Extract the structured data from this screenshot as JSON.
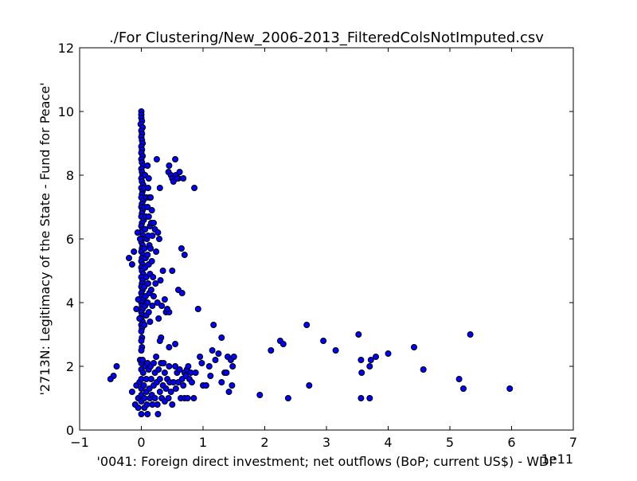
{
  "chart_data": {
    "type": "scatter",
    "title": "./For Clustering/New_2006-2013_FilteredColsNotImputed.csv",
    "xlabel": "'0041: Foreign direct investment; net outflows  (BoP; current US$) - WDI'",
    "ylabel": "'2713N: Legitimacy of the State - Fund for Peace'",
    "x_offset_label": "1e11",
    "x_scale_note": "x values in units of 1e11 (current US$), as printed on the axis",
    "xlim": [
      -1,
      7
    ],
    "ylim": [
      0,
      12
    ],
    "xticks": [
      -1,
      0,
      1,
      2,
      3,
      4,
      5,
      6,
      7
    ],
    "yticks": [
      0,
      2,
      4,
      6,
      8,
      10,
      12
    ],
    "grid": false,
    "legend": "none",
    "marker_color": "#0000ff",
    "marker_edge_color": "#000000",
    "axes_color": "#000000",
    "background_color": "#ffffff",
    "points": [
      [
        0.0,
        10.0
      ],
      [
        0.0,
        9.9
      ],
      [
        0.0,
        9.8
      ],
      [
        0.01,
        9.7
      ],
      [
        -0.01,
        9.6
      ],
      [
        0.02,
        9.5
      ],
      [
        0.0,
        9.4
      ],
      [
        0.01,
        9.3
      ],
      [
        0.0,
        9.2
      ],
      [
        0.01,
        9.1
      ],
      [
        0.02,
        9.0
      ],
      [
        0.0,
        8.9
      ],
      [
        0.01,
        8.8
      ],
      [
        0.0,
        8.7
      ],
      [
        0.02,
        8.6
      ],
      [
        0.0,
        8.5
      ],
      [
        0.01,
        8.4
      ],
      [
        0.03,
        8.3
      ],
      [
        0.0,
        8.2
      ],
      [
        0.01,
        8.1
      ],
      [
        0.02,
        8.0
      ],
      [
        0.0,
        7.9
      ],
      [
        0.01,
        7.8
      ],
      [
        0.03,
        7.7
      ],
      [
        0.0,
        7.6
      ],
      [
        0.02,
        7.5
      ],
      [
        0.01,
        7.4
      ],
      [
        0.0,
        7.3
      ],
      [
        0.03,
        7.2
      ],
      [
        0.01,
        7.1
      ],
      [
        0.0,
        7.0
      ],
      [
        0.02,
        6.9
      ],
      [
        0.01,
        6.8
      ],
      [
        0.0,
        6.7
      ],
      [
        0.04,
        6.6
      ],
      [
        0.01,
        6.5
      ],
      [
        0.0,
        6.4
      ],
      [
        0.02,
        6.3
      ],
      [
        0.0,
        6.2
      ],
      [
        0.03,
        6.1
      ],
      [
        0.01,
        6.0
      ],
      [
        0.0,
        5.9
      ],
      [
        0.02,
        5.8
      ],
      [
        0.01,
        5.7
      ],
      [
        0.0,
        5.6
      ],
      [
        0.03,
        5.5
      ],
      [
        0.01,
        5.4
      ],
      [
        0.0,
        5.3
      ],
      [
        0.02,
        5.2
      ],
      [
        0.0,
        5.1
      ],
      [
        0.01,
        5.0
      ],
      [
        0.03,
        4.9
      ],
      [
        0.0,
        4.8
      ],
      [
        0.02,
        4.7
      ],
      [
        0.01,
        4.6
      ],
      [
        0.0,
        4.5
      ],
      [
        0.02,
        4.4
      ],
      [
        0.0,
        4.3
      ],
      [
        0.01,
        4.2
      ],
      [
        0.03,
        4.1
      ],
      [
        0.0,
        4.0
      ],
      [
        0.01,
        3.9
      ],
      [
        0.02,
        3.8
      ],
      [
        0.0,
        3.7
      ],
      [
        0.01,
        3.6
      ],
      [
        0.0,
        3.5
      ],
      [
        0.02,
        3.4
      ],
      [
        0.0,
        3.3
      ],
      [
        0.01,
        3.2
      ],
      [
        0.0,
        3.1
      ],
      [
        0.01,
        2.9
      ],
      [
        0.0,
        2.8
      ],
      [
        0.01,
        2.6
      ],
      [
        0.0,
        2.5
      ],
      [
        0.06,
        8.0
      ],
      [
        0.05,
        7.6
      ],
      [
        0.08,
        7.3
      ],
      [
        0.05,
        7.0
      ],
      [
        0.07,
        6.7
      ],
      [
        0.06,
        6.3
      ],
      [
        0.09,
        6.0
      ],
      [
        0.05,
        5.7
      ],
      [
        0.07,
        5.4
      ],
      [
        0.06,
        5.1
      ],
      [
        0.08,
        4.8
      ],
      [
        0.05,
        4.5
      ],
      [
        0.07,
        4.2
      ],
      [
        0.06,
        3.9
      ],
      [
        0.08,
        3.6
      ],
      [
        0.05,
        3.3
      ],
      [
        0.1,
        8.3
      ],
      [
        0.12,
        7.9
      ],
      [
        0.11,
        7.6
      ],
      [
        0.13,
        7.3
      ],
      [
        0.1,
        7.0
      ],
      [
        0.12,
        6.7
      ],
      [
        0.14,
        6.4
      ],
      [
        0.11,
        6.1
      ],
      [
        0.13,
        5.8
      ],
      [
        0.1,
        5.5
      ],
      [
        0.12,
        5.2
      ],
      [
        0.14,
        4.9
      ],
      [
        0.11,
        4.6
      ],
      [
        0.13,
        4.3
      ],
      [
        0.1,
        4.0
      ],
      [
        0.12,
        3.7
      ],
      [
        0.14,
        3.4
      ],
      [
        0.15,
        7.3
      ],
      [
        0.17,
        6.9
      ],
      [
        0.16,
        6.5
      ],
      [
        0.18,
        6.1
      ],
      [
        0.15,
        5.7
      ],
      [
        0.17,
        5.3
      ],
      [
        0.19,
        4.8
      ],
      [
        0.16,
        4.4
      ],
      [
        0.18,
        3.9
      ],
      [
        0.2,
        6.5
      ],
      [
        0.2,
        4.2
      ],
      [
        0.25,
        8.5
      ],
      [
        0.22,
        6.3
      ],
      [
        0.24,
        5.6
      ],
      [
        0.23,
        4.6
      ],
      [
        0.27,
        6.2
      ],
      [
        0.26,
        4.0
      ],
      [
        0.28,
        3.5
      ],
      [
        0.3,
        7.6
      ],
      [
        0.29,
        6.0
      ],
      [
        0.31,
        4.7
      ],
      [
        0.33,
        3.9
      ],
      [
        0.35,
        5.0
      ],
      [
        0.32,
        2.9
      ],
      [
        0.3,
        2.8
      ],
      [
        0.4,
        3.7
      ],
      [
        0.38,
        4.1
      ],
      [
        -0.12,
        5.6
      ],
      [
        -0.2,
        5.4
      ],
      [
        -0.15,
        5.2
      ],
      [
        -0.05,
        4.1
      ],
      [
        -0.08,
        3.8
      ],
      [
        -0.03,
        3.5
      ],
      [
        -0.06,
        6.2
      ],
      [
        -0.02,
        6.0
      ],
      [
        0.45,
        8.3
      ],
      [
        0.44,
        8.1
      ],
      [
        0.48,
        8.0
      ],
      [
        0.5,
        7.9
      ],
      [
        0.55,
        8.5
      ],
      [
        0.52,
        7.8
      ],
      [
        0.56,
        8.0
      ],
      [
        0.6,
        7.9
      ],
      [
        0.62,
        8.1
      ],
      [
        0.58,
        7.9
      ],
      [
        0.68,
        7.9
      ],
      [
        0.86,
        7.6
      ],
      [
        0.5,
        5.0
      ],
      [
        0.65,
        5.7
      ],
      [
        0.7,
        5.5
      ],
      [
        0.6,
        4.4
      ],
      [
        0.66,
        4.3
      ],
      [
        0.45,
        3.7
      ],
      [
        0.42,
        3.8
      ],
      [
        0.92,
        3.8
      ],
      [
        0.55,
        2.7
      ],
      [
        0.45,
        2.6
      ],
      [
        -0.45,
        1.7
      ],
      [
        -0.5,
        1.6
      ],
      [
        -0.4,
        2.0
      ],
      [
        -0.15,
        1.2
      ],
      [
        -0.08,
        1.4
      ],
      [
        -0.1,
        0.8
      ],
      [
        -0.05,
        0.7
      ],
      [
        -0.02,
        2.2
      ],
      [
        -0.03,
        1.5
      ],
      [
        -0.05,
        1.0
      ],
      [
        0.0,
        2.1
      ],
      [
        0.0,
        1.9
      ],
      [
        0.0,
        1.6
      ],
      [
        0.0,
        1.3
      ],
      [
        0.0,
        1.1
      ],
      [
        0.0,
        0.9
      ],
      [
        0.0,
        0.5
      ],
      [
        0.02,
        2.2
      ],
      [
        0.03,
        1.8
      ],
      [
        0.04,
        1.4
      ],
      [
        0.05,
        1.0
      ],
      [
        0.05,
        0.7
      ],
      [
        0.07,
        2.0
      ],
      [
        0.08,
        1.6
      ],
      [
        0.08,
        1.2
      ],
      [
        0.09,
        0.8
      ],
      [
        0.1,
        2.1
      ],
      [
        0.1,
        0.5
      ],
      [
        0.12,
        1.9
      ],
      [
        0.13,
        1.3
      ],
      [
        0.14,
        1.0
      ],
      [
        0.15,
        2.0
      ],
      [
        0.16,
        1.6
      ],
      [
        0.17,
        1.1
      ],
      [
        0.18,
        0.8
      ],
      [
        0.2,
        2.1
      ],
      [
        0.2,
        1.4
      ],
      [
        0.22,
        1.8
      ],
      [
        0.22,
        1.0
      ],
      [
        0.24,
        2.3
      ],
      [
        0.25,
        1.5
      ],
      [
        0.26,
        0.8
      ],
      [
        0.27,
        0.5
      ],
      [
        0.28,
        1.9
      ],
      [
        0.3,
        1.2
      ],
      [
        0.3,
        1.6
      ],
      [
        0.32,
        2.1
      ],
      [
        0.33,
        1.0
      ],
      [
        0.35,
        1.4
      ],
      [
        0.36,
        2.1
      ],
      [
        0.38,
        1.8
      ],
      [
        0.38,
        0.9
      ],
      [
        0.4,
        1.3
      ],
      [
        0.42,
        1.6
      ],
      [
        0.44,
        1.0
      ],
      [
        0.45,
        2.0
      ],
      [
        0.46,
        1.5
      ],
      [
        0.48,
        1.2
      ],
      [
        0.5,
        0.8
      ],
      [
        0.52,
        1.5
      ],
      [
        0.55,
        2.0
      ],
      [
        0.56,
        1.3
      ],
      [
        0.58,
        1.8
      ],
      [
        0.6,
        1.5
      ],
      [
        0.62,
        1.9
      ],
      [
        0.64,
        1.0
      ],
      [
        0.66,
        1.6
      ],
      [
        0.68,
        1.4
      ],
      [
        0.7,
        1.0
      ],
      [
        0.7,
        1.8
      ],
      [
        0.72,
        1.7
      ],
      [
        0.74,
        1.9
      ],
      [
        0.75,
        1.0
      ],
      [
        0.76,
        2.0
      ],
      [
        0.78,
        1.6
      ],
      [
        0.8,
        1.8
      ],
      [
        0.82,
        1.5
      ],
      [
        0.85,
        1.0
      ],
      [
        0.88,
        1.8
      ],
      [
        0.95,
        2.3
      ],
      [
        0.98,
        2.1
      ],
      [
        1.0,
        1.4
      ],
      [
        1.05,
        1.4
      ],
      [
        1.1,
        2.0
      ],
      [
        1.12,
        1.7
      ],
      [
        1.15,
        2.5
      ],
      [
        1.17,
        3.3
      ],
      [
        1.2,
        2.2
      ],
      [
        1.25,
        2.4
      ],
      [
        1.3,
        2.9
      ],
      [
        1.3,
        1.5
      ],
      [
        1.35,
        1.8
      ],
      [
        1.38,
        1.8
      ],
      [
        1.4,
        2.3
      ],
      [
        1.42,
        1.2
      ],
      [
        1.45,
        2.2
      ],
      [
        1.47,
        1.4
      ],
      [
        1.48,
        2.0
      ],
      [
        1.5,
        2.3
      ],
      [
        1.92,
        1.1
      ],
      [
        2.1,
        2.5
      ],
      [
        2.25,
        2.8
      ],
      [
        2.3,
        2.7
      ],
      [
        2.38,
        1.0
      ],
      [
        2.68,
        3.3
      ],
      [
        2.72,
        1.4
      ],
      [
        2.95,
        2.8
      ],
      [
        3.15,
        2.5
      ],
      [
        3.52,
        3.0
      ],
      [
        3.56,
        2.2
      ],
      [
        3.57,
        1.8
      ],
      [
        3.56,
        1.0
      ],
      [
        3.7,
        1.0
      ],
      [
        3.7,
        2.0
      ],
      [
        3.72,
        2.2
      ],
      [
        3.8,
        2.3
      ],
      [
        4.0,
        2.4
      ],
      [
        4.42,
        2.6
      ],
      [
        4.57,
        1.9
      ],
      [
        5.15,
        1.6
      ],
      [
        5.22,
        1.3
      ],
      [
        5.33,
        3.0
      ],
      [
        5.97,
        1.3
      ]
    ]
  }
}
